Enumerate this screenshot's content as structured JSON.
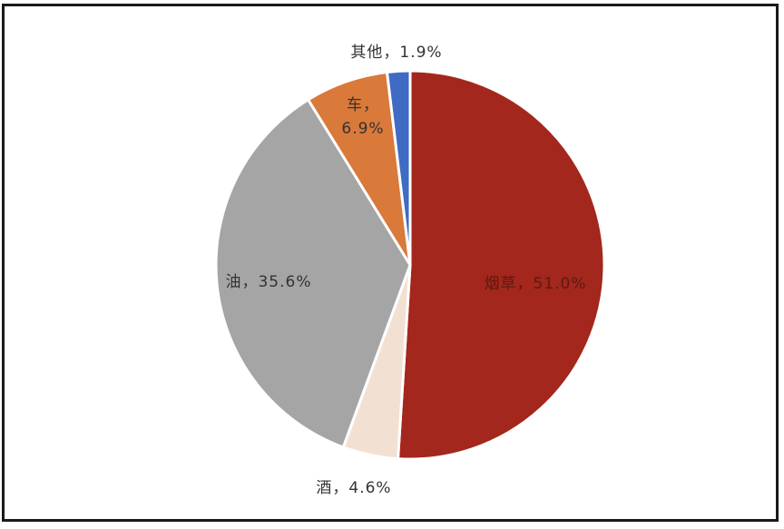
{
  "chart_data": {
    "type": "pie",
    "title": "",
    "slices": [
      {
        "label": "烟草，51.0%",
        "value": 51.0,
        "color": "#a3271c"
      },
      {
        "label": "酒，4.6%",
        "value": 4.6,
        "color": "#f2e1d3"
      },
      {
        "label": "油，35.6%",
        "value": 35.6,
        "color": "#a5a5a5"
      },
      {
        "label": "车，\n6.9%",
        "value": 6.9,
        "color": "#d9793a"
      },
      {
        "label": "其他，1.9%",
        "value": 1.9,
        "color": "#3f6bc4"
      }
    ],
    "legend": "none",
    "label_position": "mixed"
  }
}
